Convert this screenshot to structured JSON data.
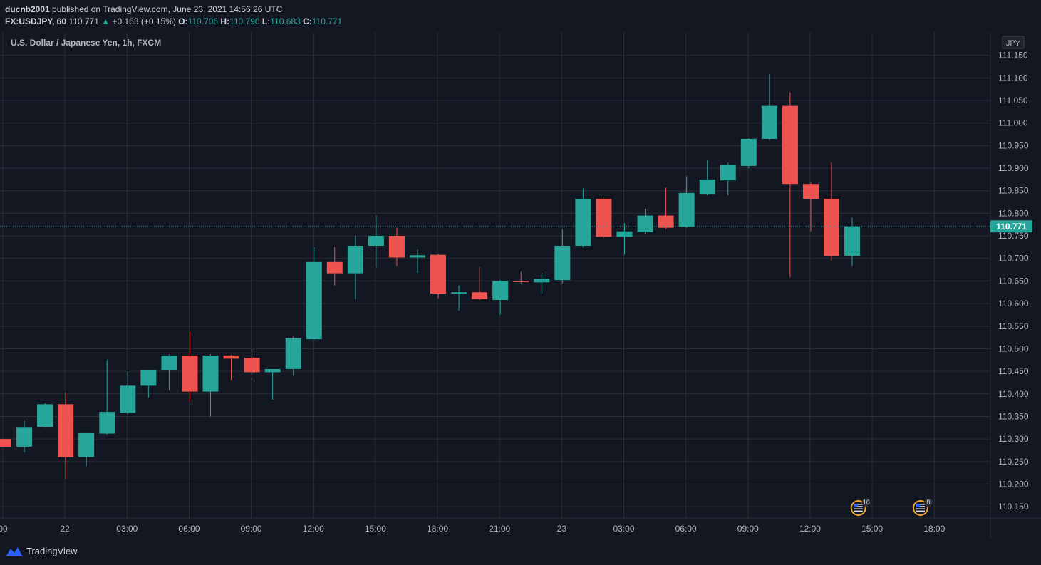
{
  "header": {
    "author": "ducnb2001",
    "published_text": "published on TradingView.com, June 23, 2021 14:56:26 UTC",
    "symbol": "FX:USDJPY, 60",
    "last": "110.771",
    "arrow": "▲",
    "change": "+0.163 (+0.15%)",
    "o_label": "O:",
    "o_value": "110.706",
    "h_label": "H:",
    "h_value": "110.790",
    "l_label": "L:",
    "l_value": "110.683",
    "c_label": "C:",
    "c_value": "110.771"
  },
  "footer": {
    "brand": "TradingView"
  },
  "colors": {
    "up": "#26a69a",
    "down": "#ef5350",
    "background": "#131722",
    "grid": "#2a2e39",
    "text": "#b2b5be"
  },
  "chart_data": {
    "type": "candlestick",
    "title": "U.S. Dollar / Japanese Yen, 1h, FXCM",
    "currency": "JPY",
    "last_price": "110.771",
    "ylim": [
      110.125,
      111.2
    ],
    "y_ticks": [
      110.15,
      110.2,
      110.25,
      110.3,
      110.35,
      110.4,
      110.45,
      110.5,
      110.55,
      110.6,
      110.65,
      110.7,
      110.75,
      110.8,
      110.85,
      110.9,
      110.95,
      111.0,
      111.05,
      111.1,
      111.15
    ],
    "x_ticks": [
      {
        "label": "00",
        "idx": -0.5
      },
      {
        "label": "22",
        "idx": 2.5
      },
      {
        "label": "03:00",
        "idx": 5.5
      },
      {
        "label": "06:00",
        "idx": 8.5
      },
      {
        "label": "09:00",
        "idx": 11.5
      },
      {
        "label": "12:00",
        "idx": 14.5
      },
      {
        "label": "15:00",
        "idx": 17.5
      },
      {
        "label": "18:00",
        "idx": 20.5
      },
      {
        "label": "21:00",
        "idx": 23.5
      },
      {
        "label": "23",
        "idx": 26.5
      },
      {
        "label": "03:00",
        "idx": 29.5
      },
      {
        "label": "06:00",
        "idx": 32.5
      },
      {
        "label": "09:00",
        "idx": 35.5
      },
      {
        "label": "12:00",
        "idx": 38.5
      },
      {
        "label": "15:00",
        "idx": 41.5
      },
      {
        "label": "18:00",
        "idx": 44.5
      }
    ],
    "candles": [
      {
        "o": 110.3,
        "h": 110.3,
        "l": 110.283,
        "c": 110.283
      },
      {
        "o": 110.283,
        "h": 110.34,
        "l": 110.27,
        "c": 110.325
      },
      {
        "o": 110.327,
        "h": 110.38,
        "l": 110.325,
        "c": 110.377
      },
      {
        "o": 110.377,
        "h": 110.403,
        "l": 110.212,
        "c": 110.26
      },
      {
        "o": 110.26,
        "h": 110.313,
        "l": 110.24,
        "c": 110.313
      },
      {
        "o": 110.312,
        "h": 110.475,
        "l": 110.31,
        "c": 110.36
      },
      {
        "o": 110.358,
        "h": 110.45,
        "l": 110.355,
        "c": 110.418
      },
      {
        "o": 110.418,
        "h": 110.452,
        "l": 110.392,
        "c": 110.452
      },
      {
        "o": 110.452,
        "h": 110.488,
        "l": 110.408,
        "c": 110.485
      },
      {
        "o": 110.485,
        "h": 110.538,
        "l": 110.383,
        "c": 110.405
      },
      {
        "o": 110.405,
        "h": 110.488,
        "l": 110.35,
        "c": 110.485
      },
      {
        "o": 110.485,
        "h": 110.487,
        "l": 110.43,
        "c": 110.478
      },
      {
        "o": 110.48,
        "h": 110.5,
        "l": 110.43,
        "c": 110.448
      },
      {
        "o": 110.448,
        "h": 110.455,
        "l": 110.387,
        "c": 110.455
      },
      {
        "o": 110.455,
        "h": 110.527,
        "l": 110.44,
        "c": 110.523
      },
      {
        "o": 110.521,
        "h": 110.725,
        "l": 110.52,
        "c": 110.692
      },
      {
        "o": 110.692,
        "h": 110.725,
        "l": 110.64,
        "c": 110.667
      },
      {
        "o": 110.667,
        "h": 110.75,
        "l": 110.61,
        "c": 110.728
      },
      {
        "o": 110.728,
        "h": 110.795,
        "l": 110.68,
        "c": 110.75
      },
      {
        "o": 110.75,
        "h": 110.768,
        "l": 110.683,
        "c": 110.702
      },
      {
        "o": 110.702,
        "h": 110.72,
        "l": 110.668,
        "c": 110.707
      },
      {
        "o": 110.708,
        "h": 110.71,
        "l": 110.612,
        "c": 110.622
      },
      {
        "o": 110.622,
        "h": 110.64,
        "l": 110.585,
        "c": 110.625
      },
      {
        "o": 110.625,
        "h": 110.68,
        "l": 110.608,
        "c": 110.61
      },
      {
        "o": 110.608,
        "h": 110.652,
        "l": 110.575,
        "c": 110.65
      },
      {
        "o": 110.65,
        "h": 110.67,
        "l": 110.645,
        "c": 110.648
      },
      {
        "o": 110.647,
        "h": 110.668,
        "l": 110.622,
        "c": 110.655
      },
      {
        "o": 110.652,
        "h": 110.765,
        "l": 110.645,
        "c": 110.728
      },
      {
        "o": 110.728,
        "h": 110.855,
        "l": 110.725,
        "c": 110.832
      },
      {
        "o": 110.832,
        "h": 110.838,
        "l": 110.745,
        "c": 110.748
      },
      {
        "o": 110.748,
        "h": 110.778,
        "l": 110.708,
        "c": 110.76
      },
      {
        "o": 110.758,
        "h": 110.81,
        "l": 110.755,
        "c": 110.795
      },
      {
        "o": 110.795,
        "h": 110.857,
        "l": 110.765,
        "c": 110.768
      },
      {
        "o": 110.77,
        "h": 110.882,
        "l": 110.768,
        "c": 110.845
      },
      {
        "o": 110.843,
        "h": 110.918,
        "l": 110.84,
        "c": 110.875
      },
      {
        "o": 110.873,
        "h": 110.912,
        "l": 110.84,
        "c": 110.907
      },
      {
        "o": 110.905,
        "h": 110.967,
        "l": 110.9,
        "c": 110.965
      },
      {
        "o": 110.965,
        "h": 111.108,
        "l": 110.962,
        "c": 111.038
      },
      {
        "o": 111.038,
        "h": 111.068,
        "l": 110.658,
        "c": 110.865
      },
      {
        "o": 110.865,
        "h": 110.868,
        "l": 110.76,
        "c": 110.832
      },
      {
        "o": 110.832,
        "h": 110.913,
        "l": 110.695,
        "c": 110.705
      },
      {
        "o": 110.706,
        "h": 110.79,
        "l": 110.683,
        "c": 110.771
      }
    ],
    "events": [
      {
        "idx": 41.3,
        "count": "16"
      },
      {
        "idx": 44.3,
        "count": "8"
      }
    ]
  }
}
